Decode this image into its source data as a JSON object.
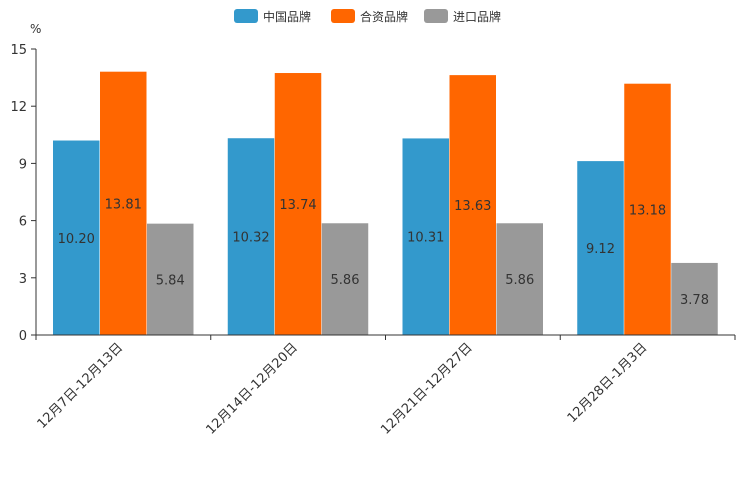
{
  "chart_data": {
    "type": "bar",
    "unit_label": "%",
    "categories": [
      "12月7日-12月13日",
      "12月14日-12月20日",
      "12月21日-12月27日",
      "12月28日-1月3日"
    ],
    "series": [
      {
        "name": "中国品牌",
        "color": "#3399cc",
        "values": [
          10.2,
          10.32,
          10.31,
          9.12
        ],
        "labels": [
          "10.20",
          "10.32",
          "10.31",
          "9.12"
        ]
      },
      {
        "name": "合资品牌",
        "color": "#ff6600",
        "values": [
          13.81,
          13.74,
          13.63,
          13.18
        ],
        "labels": [
          "13.81",
          "13.74",
          "13.63",
          "13.18"
        ]
      },
      {
        "name": "进口品牌",
        "color": "#999999",
        "values": [
          5.84,
          5.86,
          5.86,
          3.78
        ],
        "labels": [
          "5.84",
          "5.86",
          "5.86",
          "3.78"
        ]
      }
    ],
    "ylim": [
      0,
      15
    ],
    "yticks": [
      "0",
      "3",
      "6",
      "9",
      "12",
      "15"
    ],
    "legend": "top-center",
    "grid": false
  }
}
